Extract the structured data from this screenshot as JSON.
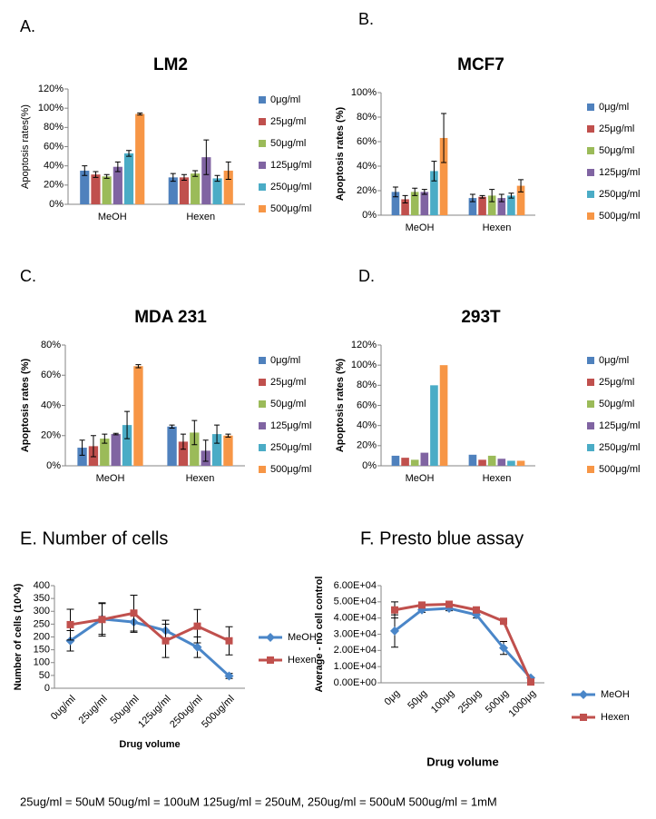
{
  "chart_data": [
    {
      "type": "bar",
      "panel": "A.",
      "title": "LM2",
      "ylabel": "Apoptosis rates(%)",
      "categories": [
        "MeOH",
        "Hexen"
      ],
      "ylim": [
        0,
        120
      ],
      "yticks": [
        {
          "value": 0,
          "label": "0%"
        },
        {
          "value": 20,
          "label": "20%"
        },
        {
          "value": 40,
          "label": "40%"
        },
        {
          "value": 60,
          "label": "60%"
        },
        {
          "value": 80,
          "label": "80%"
        },
        {
          "value": 100,
          "label": "100%"
        },
        {
          "value": 120,
          "label": "120%"
        }
      ],
      "series": [
        {
          "name": "0μg/ml",
          "color": "#4f81bd",
          "values": [
            35,
            28
          ],
          "errors": [
            5,
            4
          ]
        },
        {
          "name": "25μg/ml",
          "color": "#c0504d",
          "values": [
            31,
            28
          ],
          "errors": [
            3,
            3
          ]
        },
        {
          "name": "50μg/ml",
          "color": "#9bbb59",
          "values": [
            29,
            32
          ],
          "errors": [
            2,
            3
          ]
        },
        {
          "name": "125μg/ml",
          "color": "#8064a2",
          "values": [
            39,
            49
          ],
          "errors": [
            5,
            18
          ]
        },
        {
          "name": "250μg/ml",
          "color": "#4bacc6",
          "values": [
            53,
            27
          ],
          "errors": [
            3,
            3
          ]
        },
        {
          "name": "500μg/ml",
          "color": "#f79646",
          "values": [
            94,
            35
          ],
          "errors": [
            1,
            9
          ]
        }
      ]
    },
    {
      "type": "bar",
      "panel": "B.",
      "title": "MCF7",
      "ylabel": "Apoptosis rates (%)",
      "categories": [
        "MeOH",
        "Hexen"
      ],
      "ylim": [
        0,
        100
      ],
      "yticks": [
        {
          "value": 0,
          "label": "0%"
        },
        {
          "value": 20,
          "label": "20%"
        },
        {
          "value": 40,
          "label": "40%"
        },
        {
          "value": 60,
          "label": "60%"
        },
        {
          "value": 80,
          "label": "80%"
        },
        {
          "value": 100,
          "label": "100%"
        }
      ],
      "series": [
        {
          "name": "0μg/ml",
          "color": "#4f81bd",
          "values": [
            19,
            14
          ],
          "errors": [
            4,
            3
          ]
        },
        {
          "name": "25μg/ml",
          "color": "#c0504d",
          "values": [
            13,
            15
          ],
          "errors": [
            3,
            1
          ]
        },
        {
          "name": "50μg/ml",
          "color": "#9bbb59",
          "values": [
            19,
            16
          ],
          "errors": [
            3,
            5
          ]
        },
        {
          "name": "125μg/ml",
          "color": "#8064a2",
          "values": [
            19,
            14
          ],
          "errors": [
            2,
            3
          ]
        },
        {
          "name": "250μg/ml",
          "color": "#4bacc6",
          "values": [
            36,
            16
          ],
          "errors": [
            8,
            2
          ]
        },
        {
          "name": "500μg/ml",
          "color": "#f79646",
          "values": [
            63,
            24
          ],
          "errors": [
            20,
            5
          ]
        }
      ]
    },
    {
      "type": "bar",
      "panel": "C.",
      "title": "MDA 231",
      "ylabel": "Apoptosis rates (%)",
      "categories": [
        "MeOH",
        "Hexen"
      ],
      "ylim": [
        0,
        80
      ],
      "yticks": [
        {
          "value": 0,
          "label": "0%"
        },
        {
          "value": 20,
          "label": "20%"
        },
        {
          "value": 40,
          "label": "40%"
        },
        {
          "value": 60,
          "label": "60%"
        },
        {
          "value": 80,
          "label": "80%"
        }
      ],
      "series": [
        {
          "name": "0μg/ml",
          "color": "#4f81bd",
          "values": [
            12,
            26
          ],
          "errors": [
            5,
            1
          ]
        },
        {
          "name": "25μg/ml",
          "color": "#c0504d",
          "values": [
            13,
            16
          ],
          "errors": [
            7,
            5
          ]
        },
        {
          "name": "50μg/ml",
          "color": "#9bbb59",
          "values": [
            18,
            22
          ],
          "errors": [
            3,
            8
          ]
        },
        {
          "name": "125μg/ml",
          "color": "#8064a2",
          "values": [
            21,
            10
          ],
          "errors": [
            0.5,
            7
          ]
        },
        {
          "name": "250μg/ml",
          "color": "#4bacc6",
          "values": [
            27,
            21
          ],
          "errors": [
            9,
            6
          ]
        },
        {
          "name": "500μg/ml",
          "color": "#f79646",
          "values": [
            66,
            20
          ],
          "errors": [
            1,
            1
          ]
        }
      ]
    },
    {
      "type": "bar",
      "panel": "D.",
      "title": "293T",
      "ylabel": "Apoptosis rates (%)",
      "categories": [
        "MeOH",
        "Hexen"
      ],
      "ylim": [
        0,
        120
      ],
      "yticks": [
        {
          "value": 0,
          "label": "0%"
        },
        {
          "value": 20,
          "label": "20%"
        },
        {
          "value": 40,
          "label": "40%"
        },
        {
          "value": 60,
          "label": "60%"
        },
        {
          "value": 80,
          "label": "80%"
        },
        {
          "value": 100,
          "label": "100%"
        },
        {
          "value": 120,
          "label": "120%"
        }
      ],
      "series": [
        {
          "name": "0μg/ml",
          "color": "#4f81bd",
          "values": [
            10,
            11
          ]
        },
        {
          "name": "25μg/ml",
          "color": "#c0504d",
          "values": [
            8,
            6
          ]
        },
        {
          "name": "50μg/ml",
          "color": "#9bbb59",
          "values": [
            6,
            10
          ]
        },
        {
          "name": "125μg/ml",
          "color": "#8064a2",
          "values": [
            13,
            7
          ]
        },
        {
          "name": "250μg/ml",
          "color": "#4bacc6",
          "values": [
            80,
            5
          ]
        },
        {
          "name": "500μg/ml",
          "color": "#f79646",
          "values": [
            100,
            5
          ]
        }
      ]
    },
    {
      "type": "line",
      "title": "E. Number of cells",
      "ylabel": "Number of cells  (10^4)",
      "xlabel": "Drug volume",
      "categories": [
        "0ug/ml",
        "25ug/ml",
        "50ug/ml",
        "125ug/ml",
        "250ug/ml",
        "500ug/ml"
      ],
      "ylim": [
        0,
        400
      ],
      "yticks": [
        0,
        50,
        100,
        150,
        200,
        250,
        300,
        350,
        400
      ],
      "series": [
        {
          "name": "MeOH",
          "color": "#4a86c8",
          "marker": "diamond",
          "values": [
            185,
            270,
            258,
            225,
            160,
            48
          ],
          "errors": [
            40,
            60,
            40,
            40,
            40,
            10
          ]
        },
        {
          "name": "Hexen",
          "color": "#c0504d",
          "marker": "square",
          "values": [
            248,
            268,
            293,
            185,
            242,
            185
          ],
          "errors": [
            60,
            65,
            70,
            65,
            65,
            55
          ]
        }
      ]
    },
    {
      "type": "line",
      "title": "F. Presto blue assay",
      "ylabel": "Average - no cell control",
      "xlabel": "Drug volume",
      "categories": [
        "0μg",
        "50μg",
        "100μg",
        "250μg",
        "500μg",
        "1000μg"
      ],
      "ylim": [
        0,
        60000
      ],
      "yticks": [
        {
          "value": 0,
          "label": "0.00E+00"
        },
        {
          "value": 10000,
          "label": "1.00E+04"
        },
        {
          "value": 20000,
          "label": "2.00E+04"
        },
        {
          "value": 30000,
          "label": "3.00E+04"
        },
        {
          "value": 40000,
          "label": "4.00E+04"
        },
        {
          "value": 50000,
          "label": "5.00E+04"
        },
        {
          "value": 60000,
          "label": "6.00E+04"
        }
      ],
      "series": [
        {
          "name": "MeOH",
          "color": "#4a86c8",
          "marker": "diamond",
          "values": [
            32000,
            45000,
            46000,
            42000,
            21500,
            3000
          ],
          "errors": [
            10000,
            1500,
            1500,
            2000,
            4000,
            500
          ]
        },
        {
          "name": "Hexen",
          "color": "#c0504d",
          "marker": "square",
          "values": [
            45000,
            48000,
            48500,
            45000,
            38000,
            500
          ],
          "errors": [
            5000,
            1000,
            1000,
            1500,
            1000,
            300
          ]
        }
      ]
    }
  ],
  "footnote": "25ug/ml = 50uM 50ug/ml = 100uM 125ug/ml = 250uM, 250ug/ml = 500uM 500ug/ml = 1mM"
}
